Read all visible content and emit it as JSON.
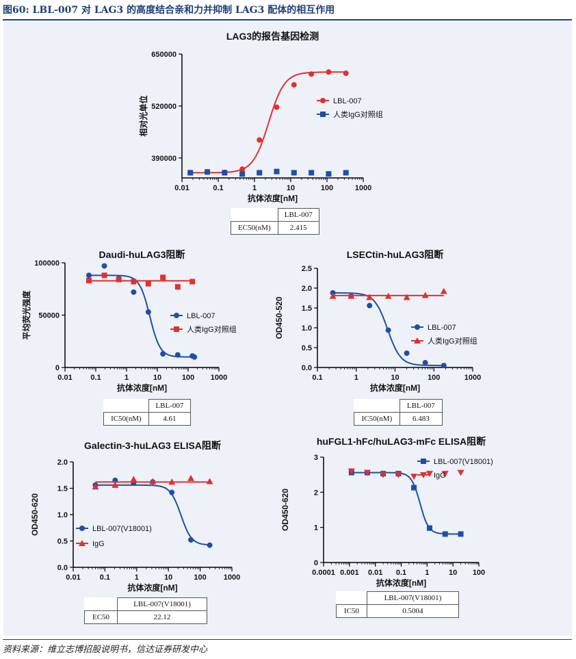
{
  "header": {
    "title": "图60: LBL-007 对 LAG3 的高度结合亲和力并抑制 LAG3 配体的相互作用"
  },
  "footer": {
    "source": "资料来源：维立志博招股说明书，信达证券研发中心"
  },
  "colors": {
    "red": "#e03030",
    "blue": "#1d4fa8",
    "navy": "#1f3f7a",
    "panel": "#eef1f7"
  },
  "chart_data": [
    {
      "type": "scatter",
      "id": "c1",
      "title": "LAG3的报告基因检测",
      "xlabel": "抗体浓度[nM]",
      "ylabel": "相对光单位",
      "xscale": "log",
      "xlim": [
        0.01,
        1000
      ],
      "ylim": [
        340000,
        650000
      ],
      "xticks": [
        0.01,
        0.1,
        1,
        10,
        100,
        1000
      ],
      "xtick_labels": [
        "0.01",
        "0.1",
        "1",
        "10",
        "100",
        "1000"
      ],
      "yticks": [
        390000,
        520000,
        650000
      ],
      "ytick_labels": [
        "390000",
        "520000",
        "650000"
      ],
      "legend_position": "right",
      "series": [
        {
          "name": "LBL-007",
          "color": "#e03030",
          "marker": "circle",
          "fit": "rising",
          "x": [
            0.017,
            0.05,
            0.15,
            0.46,
            1.37,
            4.1,
            12.3,
            37,
            111,
            333
          ],
          "y": [
            353000,
            355000,
            354000,
            362000,
            435000,
            517000,
            573000,
            600000,
            605000,
            602000
          ]
        },
        {
          "name": "人类IgG对照组",
          "color": "#1d4fa8",
          "marker": "square",
          "fit": "none",
          "x": [
            0.017,
            0.05,
            0.15,
            0.46,
            1.37,
            4.1,
            12.3,
            37,
            111,
            333
          ],
          "y": [
            353000,
            355000,
            353000,
            350000,
            353000,
            356000,
            353000,
            353000,
            350000,
            353000
          ]
        }
      ],
      "table": {
        "header": "LBL-007",
        "label": "EC50(nM)",
        "value": "2.415"
      }
    },
    {
      "type": "scatter",
      "id": "c2",
      "title": "Daudi-huLAG3阻断",
      "xlabel": "抗体浓度[nM]",
      "ylabel": "平均荧光强度",
      "xscale": "log",
      "xlim": [
        0.01,
        1000
      ],
      "ylim": [
        0,
        100000
      ],
      "xticks": [
        0.01,
        0.1,
        1,
        10,
        100,
        1000
      ],
      "xtick_labels": [
        "0.01",
        "0.1",
        "1",
        "10",
        "100",
        "1000"
      ],
      "yticks": [
        0,
        50000,
        100000
      ],
      "ytick_labels": [
        "0",
        "50000",
        "100000"
      ],
      "legend_position": "right",
      "series": [
        {
          "name": "LBL-007",
          "color": "#1d4fa8",
          "marker": "circle",
          "fit": "falling",
          "x": [
            0.06,
            0.19,
            0.56,
            1.7,
            5.1,
            15.2,
            46,
            137,
            160
          ],
          "y": [
            88000,
            97000,
            85000,
            72000,
            53000,
            13000,
            12000,
            11000,
            10000
          ]
        },
        {
          "name": "人类IgG对照组",
          "color": "#e03030",
          "marker": "square",
          "fit": "flat",
          "x": [
            0.06,
            0.19,
            0.56,
            1.7,
            5.1,
            15.2,
            46,
            137
          ],
          "y": [
            83000,
            88000,
            84000,
            82000,
            80000,
            86000,
            77000,
            82000
          ]
        }
      ],
      "table": {
        "header": "LBL-007",
        "label": "IC50(nM)",
        "value": "4.61"
      }
    },
    {
      "type": "scatter",
      "id": "c3",
      "title": "LSECtin-huLAG3阻断",
      "xlabel": "抗体浓度[nM]",
      "ylabel": "OD450-520",
      "xscale": "log",
      "xlim": [
        0.1,
        1000
      ],
      "ylim": [
        0,
        2.5
      ],
      "xticks": [
        0.1,
        1,
        10,
        100,
        1000
      ],
      "xtick_labels": [
        "0.1",
        "1",
        "10",
        "100",
        "1000"
      ],
      "yticks": [
        0,
        0.5,
        1.0,
        1.5,
        2.0,
        2.5
      ],
      "ytick_labels": [
        "0.0",
        "0.5",
        "1.0",
        "1.5",
        "2.0",
        "2.5"
      ],
      "legend_position": "right",
      "series": [
        {
          "name": "LBL-007",
          "color": "#1d4fa8",
          "marker": "circle",
          "fit": "falling",
          "x": [
            0.25,
            0.74,
            2.2,
            6.7,
            20,
            60,
            180
          ],
          "y": [
            1.88,
            1.8,
            1.56,
            0.94,
            0.36,
            0.12,
            0.05
          ]
        },
        {
          "name": "人类IgG对照组",
          "color": "#e03030",
          "marker": "triangle",
          "fit": "flat",
          "x": [
            0.25,
            0.74,
            2.2,
            6.7,
            20,
            60,
            180
          ],
          "y": [
            1.8,
            1.8,
            1.77,
            1.8,
            1.77,
            1.82,
            1.92
          ]
        }
      ],
      "table": {
        "header": "LBL-007",
        "label": "IC50(nM)",
        "value": "6.483"
      }
    },
    {
      "type": "scatter",
      "id": "c4",
      "title": "Galectin-3-huLAG3 ELISA阻断",
      "xlabel": "抗体浓度[nM]",
      "ylabel": "OD450-620",
      "xscale": "log",
      "xlim": [
        0.01,
        1000
      ],
      "ylim": [
        0,
        2.0
      ],
      "xticks": [
        0.01,
        0.1,
        1,
        10,
        100,
        1000
      ],
      "xtick_labels": [
        "0.01",
        "0.1",
        "1",
        "10",
        "100",
        "1000"
      ],
      "yticks": [
        0,
        0.5,
        1.0,
        1.5,
        2.0
      ],
      "ytick_labels": [
        "0.0",
        "0.5",
        "1.0",
        "1.5",
        "2.0"
      ],
      "legend_position": "left",
      "series": [
        {
          "name": "LBL-007(V18001)",
          "color": "#1d4fa8",
          "marker": "circle",
          "fit": "falling",
          "x": [
            0.05,
            0.21,
            0.8,
            3.2,
            12.8,
            51,
            200
          ],
          "y": [
            1.56,
            1.65,
            1.6,
            1.62,
            1.42,
            0.52,
            0.42
          ]
        },
        {
          "name": "IgG",
          "color": "#e03030",
          "marker": "triangle",
          "fit": "flat",
          "x": [
            0.05,
            0.21,
            0.8,
            3.2,
            12.8,
            51,
            200
          ],
          "y": [
            1.53,
            1.56,
            1.67,
            1.63,
            1.62,
            1.69,
            1.63
          ]
        }
      ],
      "table": {
        "header": "LBL-007(V18001)",
        "label": "EC50",
        "value": "22.12"
      }
    },
    {
      "type": "scatter",
      "id": "c5",
      "title": "huFGL1-hFc/huLAG3-mFc ELISA阻断",
      "xlabel": "抗体浓度[nM]",
      "ylabel": "OD450-620",
      "xscale": "log",
      "xlim": [
        0.0001,
        100
      ],
      "ylim": [
        0,
        3
      ],
      "xticks": [
        0.0001,
        0.001,
        0.01,
        0.1,
        1,
        10,
        100
      ],
      "xtick_labels": [
        "0.0001",
        "0.001",
        "0.01",
        "0.1",
        "1",
        "10",
        "100"
      ],
      "yticks": [
        0,
        1,
        2,
        3
      ],
      "ytick_labels": [
        "0",
        "1",
        "2",
        "3"
      ],
      "legend_position": "top-right",
      "series": [
        {
          "name": "LBL-007(V18001)",
          "color": "#1d4fa8",
          "marker": "square",
          "fit": "falling",
          "x": [
            0.0012,
            0.0049,
            0.02,
            0.078,
            0.31,
            1.25,
            5,
            20
          ],
          "y": [
            2.56,
            2.56,
            2.53,
            2.53,
            2.13,
            0.98,
            0.81,
            0.81
          ]
        },
        {
          "name": "IgG",
          "color": "#e03030",
          "marker": "triangle-down",
          "fit": "none",
          "x": [
            0.0012,
            0.0049,
            0.02,
            0.078,
            0.31,
            1.25,
            5,
            20
          ],
          "y": [
            2.6,
            2.56,
            2.5,
            2.5,
            2.45,
            2.53,
            2.53,
            2.56
          ]
        }
      ],
      "table": {
        "header": "LBL-007(V18001)",
        "label": "IC50",
        "value": "0.5004"
      }
    }
  ]
}
